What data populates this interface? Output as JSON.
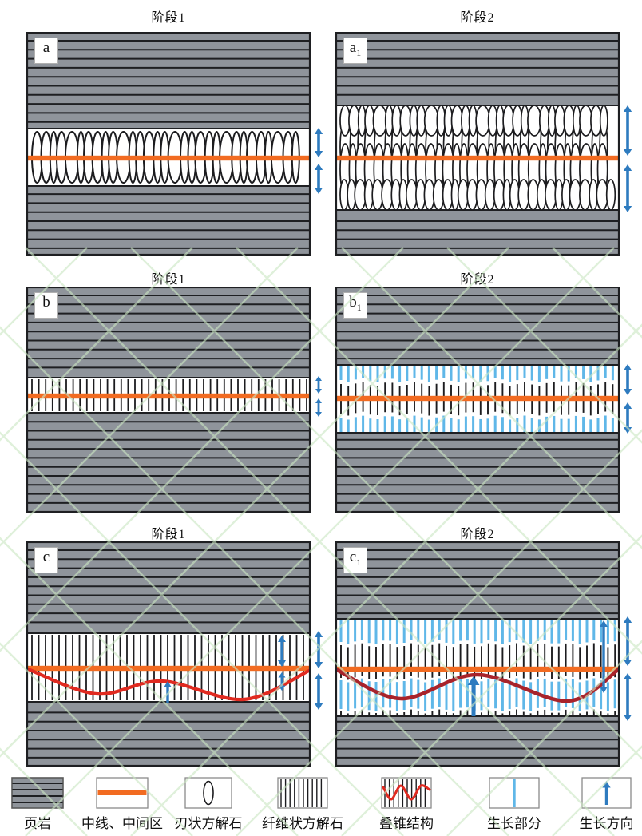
{
  "panels": [
    {
      "name": "panel-a",
      "label": "a",
      "sub": "",
      "title": "阶段1"
    },
    {
      "name": "panel-a1",
      "label": "a",
      "sub": "1",
      "title": "阶段2"
    },
    {
      "name": "panel-b",
      "label": "b",
      "sub": "",
      "title": "阶段1"
    },
    {
      "name": "panel-b1",
      "label": "b",
      "sub": "1",
      "title": "阶段2"
    },
    {
      "name": "panel-c",
      "label": "c",
      "sub": "",
      "title": "阶段1"
    },
    {
      "name": "panel-c1",
      "label": "c",
      "sub": "1",
      "title": "阶段2"
    }
  ],
  "legend": [
    {
      "name": "shale",
      "label": "页岩"
    },
    {
      "name": "median-zone",
      "label": "中线、中间区"
    },
    {
      "name": "blade-calcite",
      "label": "刃状方解石"
    },
    {
      "name": "fibrous-calcite",
      "label": "纤维状方解石"
    },
    {
      "name": "cone-in-cone",
      "label": "叠锥结构"
    },
    {
      "name": "growth-part",
      "label": "生长部分"
    },
    {
      "name": "growth-direction",
      "label": "生长方向"
    }
  ],
  "colors": {
    "shale_gray": "#8f949b",
    "bed_line": "#1e1f22",
    "vein_white": "#ffffff",
    "calcite_stroke": "#1c1c1f",
    "median_orange": "#f26b21",
    "arrow_blue": "#2e7bbf",
    "growth_blue": "#5fb7e8",
    "cone_red": "#e02a20",
    "cone_dark_red": "#a8232b",
    "legend_border": "#8a8a8a",
    "watermark_green": "#cbe7c3"
  }
}
